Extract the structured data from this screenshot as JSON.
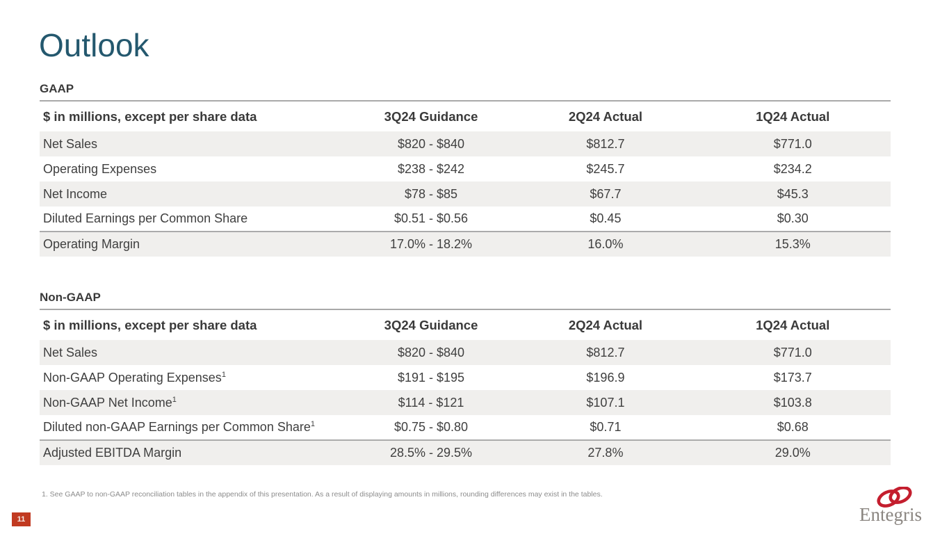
{
  "slide": {
    "title": "Outlook",
    "page_number": "11"
  },
  "colors": {
    "title_teal": "#24586e",
    "stripe_gray": "#f0efed",
    "rule_gray": "#a9a9a9",
    "text_dark": "#3f3f3f",
    "badge_red": "#c13a21",
    "logo_red": "#c41e2e",
    "logo_gray": "#8a8580"
  },
  "tables": [
    {
      "section": "GAAP",
      "columns": [
        "$ in millions, except per share data",
        "3Q24 Guidance",
        "2Q24 Actual",
        "1Q24 Actual"
      ],
      "rows": [
        {
          "label": "Net Sales",
          "values": [
            "$820 - $840",
            "$812.7",
            "$771.0"
          ]
        },
        {
          "label": "Operating Expenses",
          "values": [
            "$238 - $242",
            "$245.7",
            "$234.2"
          ]
        },
        {
          "label": "Net Income",
          "values": [
            "$78 - $85",
            "$67.7",
            "$45.3"
          ]
        },
        {
          "label": "Diluted Earnings per Common Share",
          "values": [
            "$0.51 - $0.56",
            "$0.45",
            "$0.30"
          ]
        },
        {
          "label": "Operating Margin",
          "values": [
            "17.0% - 18.2%",
            "16.0%",
            "15.3%"
          ]
        }
      ]
    },
    {
      "section": "Non-GAAP",
      "columns": [
        "$ in millions, except per share data",
        "3Q24 Guidance",
        "2Q24 Actual",
        "1Q24 Actual"
      ],
      "rows": [
        {
          "label": "Net Sales",
          "values": [
            "$820 - $840",
            "$812.7",
            "$771.0"
          ]
        },
        {
          "label": "Non-GAAP Operating Expenses",
          "sup": "1",
          "values": [
            "$191 - $195",
            "$196.9",
            "$173.7"
          ]
        },
        {
          "label": "Non-GAAP Net Income",
          "sup": "1",
          "values": [
            "$114 - $121",
            "$107.1",
            "$103.8"
          ]
        },
        {
          "label": "Diluted non-GAAP Earnings per Common Share",
          "sup": "1",
          "values": [
            "$0.75 - $0.80",
            "$0.71",
            "$0.68"
          ]
        },
        {
          "label": "Adjusted EBITDA Margin",
          "values": [
            "28.5% - 29.5%",
            "27.8%",
            "29.0%"
          ]
        }
      ]
    }
  ],
  "footnote": "1. See GAAP to non-GAAP reconciliation tables in the appendix of this presentation. As a result of displaying amounts in millions, rounding differences may exist in the tables.",
  "logo": {
    "text": "Entegris"
  }
}
